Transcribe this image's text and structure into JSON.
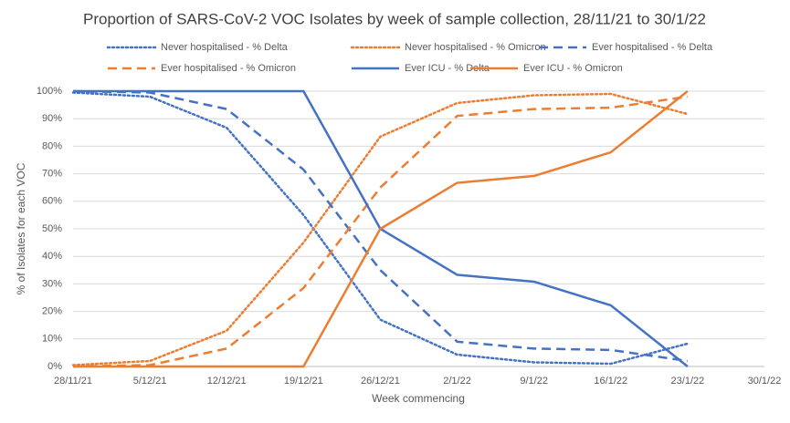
{
  "chart_data": {
    "type": "line",
    "title": "Proportion of SARS-CoV-2 VOC Isolates by week of sample collection, 28/11/21 to 30/1/22",
    "x_label": "Week commencing",
    "y_label": "% of Isolates for each VOC",
    "categories": [
      "28/11/21",
      "5/12/21",
      "12/12/21",
      "19/12/21",
      "26/12/21",
      "2/1/22",
      "9/1/22",
      "16/1/22",
      "23/1/22",
      "30/1/22"
    ],
    "series": [
      {
        "name": "Never hospitalised - % Delta",
        "color": "#4472c4",
        "dash": "dot",
        "values": [
          99.5,
          98,
          86.7,
          55,
          17,
          4.3,
          1.5,
          1,
          8.3,
          null
        ]
      },
      {
        "name": "Never hospitalised - % Omicron",
        "color": "#ed7d31",
        "dash": "dot",
        "values": [
          0.5,
          2,
          13,
          45,
          83.5,
          95.7,
          98.5,
          99,
          91.7,
          null
        ]
      },
      {
        "name": "Ever hospitalised - % Delta",
        "color": "#4472c4",
        "dash": "dash",
        "values": [
          100,
          99.5,
          93.5,
          71.5,
          35,
          9,
          6.5,
          6,
          2,
          null
        ]
      },
      {
        "name": "Ever hospitalised - % Omicron",
        "color": "#ed7d31",
        "dash": "dash",
        "values": [
          0,
          0.5,
          6.5,
          28.5,
          65,
          91,
          93.5,
          94,
          98,
          null
        ]
      },
      {
        "name": "Ever ICU - % Delta",
        "color": "#4472c4",
        "dash": "solid",
        "values": [
          100,
          100,
          100,
          100,
          50,
          33.3,
          30.8,
          22.2,
          0,
          null
        ]
      },
      {
        "name": "Ever ICU - % Omicron",
        "color": "#ed7d31",
        "dash": "solid",
        "values": [
          0,
          0,
          0,
          0,
          50,
          66.7,
          69.2,
          77.8,
          100,
          null
        ]
      }
    ],
    "ylim": [
      0,
      100
    ],
    "yticks": [
      {
        "value": 0,
        "label": "0%"
      },
      {
        "value": 10,
        "label": "10%"
      },
      {
        "value": 20,
        "label": "20%"
      },
      {
        "value": 30,
        "label": "30%"
      },
      {
        "value": 40,
        "label": "40%"
      },
      {
        "value": 50,
        "label": "50%"
      },
      {
        "value": 60,
        "label": "60%"
      },
      {
        "value": 70,
        "label": "70%"
      },
      {
        "value": 80,
        "label": "80%"
      },
      {
        "value": 90,
        "label": "90%"
      },
      {
        "value": 100,
        "label": "100%"
      }
    ],
    "grid": true,
    "legend": "top"
  }
}
